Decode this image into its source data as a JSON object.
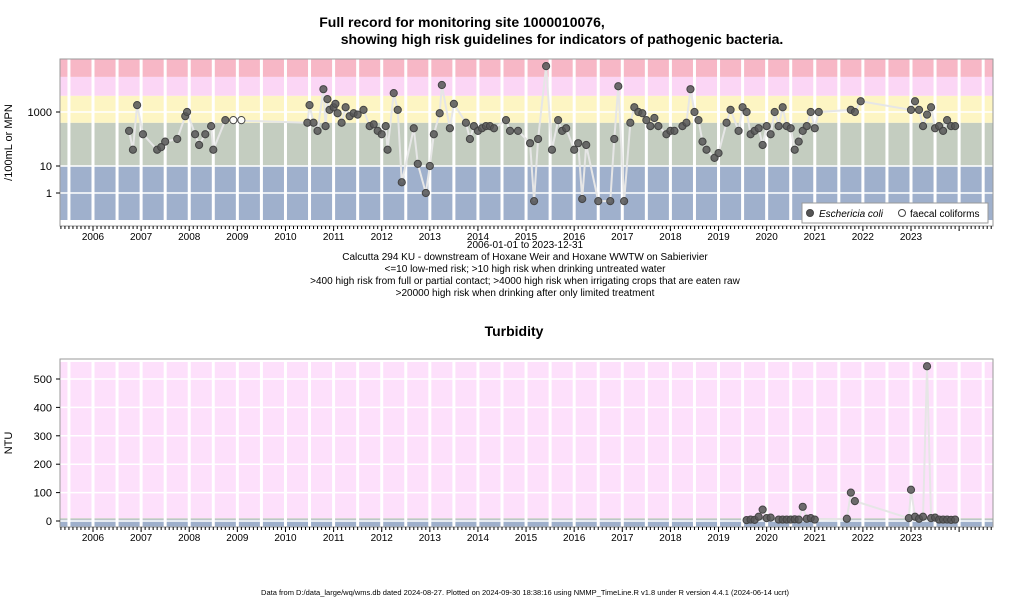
{
  "page": {
    "title_line1": "Full record for monitoring site 1000010076,",
    "title_line2": "showing high risk guidelines for indicators of pathogenic bacteria.",
    "date_range": "2006-01-01 to 2023-12-31",
    "site_desc": "Calcutta 294 KU - downstream of Hoxane Weir and Hoxane WWTW on Sabierivier",
    "guide_1": "<=10 low-med risk; >10 high risk when drinking untreated water",
    "guide_2": ">400 high risk from full or partial contact; >4000 high risk when irrigating crops that are eaten raw",
    "guide_3": ">20000 high risk when drinking after only limited treatment",
    "footer": "Data from D:/data_large/wq/wms.db dated 2024-08-27. Plotted on 2024-09-30 18:38:16 using NMMP_TimeLine.R v1.8 under R version 4.4.1 (2024-06-14 ucrt)"
  },
  "chart_data": [
    {
      "type": "scatter",
      "title": "",
      "ylabel": "/100mL or MPN",
      "xlabel": "",
      "x_ticks": [
        "2006",
        "2007",
        "2008",
        "2009",
        "2010",
        "2011",
        "2012",
        "2013",
        "2014",
        "2015",
        "2016",
        "2017",
        "2018",
        "2019",
        "2020",
        "2021",
        "2022",
        "2023"
      ],
      "y_scale": "log",
      "y_ticks": [
        {
          "v": 1,
          "label": "1"
        },
        {
          "v": 10,
          "label": "10"
        },
        {
          "v": 1000,
          "label": "1000"
        }
      ],
      "bands": [
        {
          "from": 0.1,
          "to": 10,
          "color": "#9fb0cc"
        },
        {
          "from": 10,
          "to": 400,
          "color": "#c4cdc0"
        },
        {
          "from": 400,
          "to": 4000,
          "color": "#fdf5c3"
        },
        {
          "from": 4000,
          "to": 20000,
          "color": "#fbd6f5"
        },
        {
          "from": 20000,
          "to": 100000,
          "color": "#f7b7c6"
        }
      ],
      "legend": {
        "position": "bottom-right",
        "items": [
          "Eschericia coli",
          "faecal coliforms"
        ]
      },
      "series": [
        {
          "name": "Eschericia coli",
          "color": "#555555",
          "points": [
            [
              "2006-10-01",
              200
            ],
            [
              "2006-10-30",
              40
            ],
            [
              "2006-12-01",
              1800
            ],
            [
              "2007-01-15",
              150
            ],
            [
              "2007-05-01",
              40
            ],
            [
              "2007-06-01",
              50
            ],
            [
              "2007-07-01",
              80
            ],
            [
              "2007-10-01",
              100
            ],
            [
              "2007-12-01",
              700
            ],
            [
              "2007-12-15",
              1000
            ],
            [
              "2008-02-15",
              150
            ],
            [
              "2008-03-15",
              60
            ],
            [
              "2008-05-01",
              150
            ],
            [
              "2008-06-15",
              300
            ],
            [
              "2008-07-01",
              40
            ],
            [
              "2008-10-01",
              500
            ],
            [
              "2010-06-15",
              400
            ],
            [
              "2010-07-01",
              1800
            ],
            [
              "2010-08-01",
              400
            ],
            [
              "2010-09-01",
              200
            ],
            [
              "2010-10-15",
              7000
            ],
            [
              "2010-11-01",
              300
            ],
            [
              "2010-11-15",
              3000
            ],
            [
              "2010-12-01",
              1200
            ],
            [
              "2011-01-01",
              1500
            ],
            [
              "2011-01-15",
              2000
            ],
            [
              "2011-02-01",
              900
            ],
            [
              "2011-03-01",
              400
            ],
            [
              "2011-04-01",
              1500
            ],
            [
              "2011-05-01",
              700
            ],
            [
              "2011-06-01",
              900
            ],
            [
              "2011-07-01",
              800
            ],
            [
              "2011-08-15",
              1200
            ],
            [
              "2011-10-01",
              300
            ],
            [
              "2011-11-01",
              350
            ],
            [
              "2011-12-01",
              200
            ],
            [
              "2012-01-01",
              150
            ],
            [
              "2012-02-01",
              300
            ],
            [
              "2012-02-15",
              40
            ],
            [
              "2012-04-01",
              5000
            ],
            [
              "2012-05-01",
              1200
            ],
            [
              "2012-06-01",
              2.5
            ],
            [
              "2012-09-01",
              250
            ],
            [
              "2012-10-01",
              12
            ],
            [
              "2012-12-01",
              1
            ],
            [
              "2013-01-01",
              10
            ],
            [
              "2013-02-01",
              150
            ],
            [
              "2013-03-15",
              900
            ],
            [
              "2013-04-01",
              10000
            ],
            [
              "2013-06-01",
              250
            ],
            [
              "2013-07-01",
              2000
            ],
            [
              "2013-10-01",
              400
            ],
            [
              "2013-11-01",
              100
            ],
            [
              "2013-12-01",
              300
            ],
            [
              "2014-01-01",
              200
            ],
            [
              "2014-02-01",
              250
            ],
            [
              "2014-03-01",
              300
            ],
            [
              "2014-04-01",
              300
            ],
            [
              "2014-05-01",
              250
            ],
            [
              "2014-08-01",
              500
            ],
            [
              "2014-09-01",
              200
            ],
            [
              "2014-11-01",
              200
            ],
            [
              "2015-02-01",
              70
            ],
            [
              "2015-03-01",
              0.5
            ],
            [
              "2015-04-01",
              100
            ],
            [
              "2015-06-01",
              50000
            ],
            [
              "2015-07-15",
              40
            ],
            [
              "2015-09-01",
              500
            ],
            [
              "2015-10-01",
              200
            ],
            [
              "2015-11-01",
              250
            ],
            [
              "2016-01-01",
              40
            ],
            [
              "2016-02-01",
              70
            ],
            [
              "2016-03-01",
              0.6
            ],
            [
              "2016-04-01",
              60
            ],
            [
              "2016-07-01",
              0.5
            ],
            [
              "2016-10-01",
              0.5
            ],
            [
              "2016-11-01",
              100
            ],
            [
              "2016-12-01",
              9000
            ],
            [
              "2017-01-15",
              0.5
            ],
            [
              "2017-03-01",
              400
            ],
            [
              "2017-04-01",
              1500
            ],
            [
              "2017-05-01",
              1000
            ],
            [
              "2017-06-01",
              900
            ],
            [
              "2017-07-01",
              500
            ],
            [
              "2017-08-01",
              300
            ],
            [
              "2017-09-01",
              600
            ],
            [
              "2017-10-01",
              300
            ],
            [
              "2017-12-01",
              150
            ],
            [
              "2018-01-01",
              200
            ],
            [
              "2018-02-01",
              200
            ],
            [
              "2018-04-01",
              300
            ],
            [
              "2018-05-01",
              400
            ],
            [
              "2018-06-01",
              7000
            ],
            [
              "2018-07-01",
              1000
            ],
            [
              "2018-08-01",
              500
            ],
            [
              "2018-09-01",
              80
            ],
            [
              "2018-10-01",
              40
            ],
            [
              "2018-12-01",
              20
            ],
            [
              "2019-01-01",
              30
            ],
            [
              "2019-03-01",
              400
            ],
            [
              "2019-04-01",
              1200
            ],
            [
              "2019-06-01",
              200
            ],
            [
              "2019-07-01",
              1500
            ],
            [
              "2019-08-01",
              1000
            ],
            [
              "2019-09-01",
              150
            ],
            [
              "2019-10-01",
              200
            ],
            [
              "2019-11-01",
              250
            ],
            [
              "2019-12-01",
              60
            ],
            [
              "2020-01-01",
              300
            ],
            [
              "2020-02-01",
              150
            ],
            [
              "2020-03-01",
              1000
            ],
            [
              "2020-04-01",
              300
            ],
            [
              "2020-05-01",
              1500
            ],
            [
              "2020-06-01",
              300
            ],
            [
              "2020-07-01",
              250
            ],
            [
              "2020-08-01",
              40
            ],
            [
              "2020-09-01",
              80
            ],
            [
              "2020-10-01",
              200
            ],
            [
              "2020-11-01",
              300
            ],
            [
              "2020-12-01",
              1000
            ],
            [
              "2021-01-01",
              250
            ],
            [
              "2021-02-01",
              1000
            ],
            [
              "2021-10-01",
              1200
            ],
            [
              "2021-11-01",
              1000
            ],
            [
              "2021-12-15",
              2500
            ],
            [
              "2023-01-01",
              1200
            ],
            [
              "2023-02-01",
              2500
            ],
            [
              "2023-03-01",
              1200
            ],
            [
              "2023-04-01",
              300
            ],
            [
              "2023-05-01",
              800
            ],
            [
              "2023-06-01",
              1500
            ],
            [
              "2023-07-01",
              250
            ],
            [
              "2023-08-01",
              300
            ],
            [
              "2023-09-01",
              200
            ],
            [
              "2023-10-01",
              500
            ],
            [
              "2023-11-01",
              300
            ],
            [
              "2023-12-01",
              300
            ]
          ]
        },
        {
          "name": "faecal coliforms",
          "color": "#ffffff",
          "points": [
            [
              "2008-12-01",
              500
            ],
            [
              "2009-02-01",
              500
            ]
          ]
        }
      ]
    },
    {
      "type": "line",
      "title": "Turbidity",
      "ylabel": "NTU",
      "xlabel": "",
      "x_ticks": [
        "2006",
        "2007",
        "2008",
        "2009",
        "2010",
        "2011",
        "2012",
        "2013",
        "2014",
        "2015",
        "2016",
        "2017",
        "2018",
        "2019",
        "2020",
        "2021",
        "2022",
        "2023"
      ],
      "ylim": [
        0,
        560
      ],
      "y_ticks": [
        0,
        100,
        200,
        300,
        400,
        500
      ],
      "bands": [
        {
          "from": -25,
          "to": 5,
          "color": "#9fb0cc"
        },
        {
          "from": 5,
          "to": 10,
          "color": "#c4cdc0"
        },
        {
          "from": 10,
          "to": 560,
          "color": "#fde0fb"
        }
      ],
      "series": [
        {
          "name": "",
          "color": "#555555",
          "points": [
            [
              "2019-08-01",
              3
            ],
            [
              "2019-09-01",
              5
            ],
            [
              "2019-10-01",
              4
            ],
            [
              "2019-11-01",
              15
            ],
            [
              "2019-12-01",
              40
            ],
            [
              "2020-01-01",
              10
            ],
            [
              "2020-02-01",
              12
            ],
            [
              "2020-04-01",
              5
            ],
            [
              "2020-05-01",
              5
            ],
            [
              "2020-06-01",
              5
            ],
            [
              "2020-07-01",
              5
            ],
            [
              "2020-08-01",
              6
            ],
            [
              "2020-09-01",
              5
            ],
            [
              "2020-10-01",
              50
            ],
            [
              "2020-11-01",
              8
            ],
            [
              "2020-12-01",
              10
            ],
            [
              "2021-01-01",
              5
            ],
            [
              "2021-09-01",
              8
            ],
            [
              "2021-10-01",
              100
            ],
            [
              "2021-11-01",
              70
            ],
            [
              "2022-12-15",
              10
            ],
            [
              "2023-01-01",
              110
            ],
            [
              "2023-02-01",
              15
            ],
            [
              "2023-03-01",
              8
            ],
            [
              "2023-04-01",
              15
            ],
            [
              "2023-05-01",
              545
            ],
            [
              "2023-06-01",
              10
            ],
            [
              "2023-07-01",
              12
            ],
            [
              "2023-08-01",
              5
            ],
            [
              "2023-09-01",
              5
            ],
            [
              "2023-10-01",
              5
            ],
            [
              "2023-11-01",
              4
            ],
            [
              "2023-12-01",
              5
            ]
          ]
        }
      ]
    }
  ]
}
